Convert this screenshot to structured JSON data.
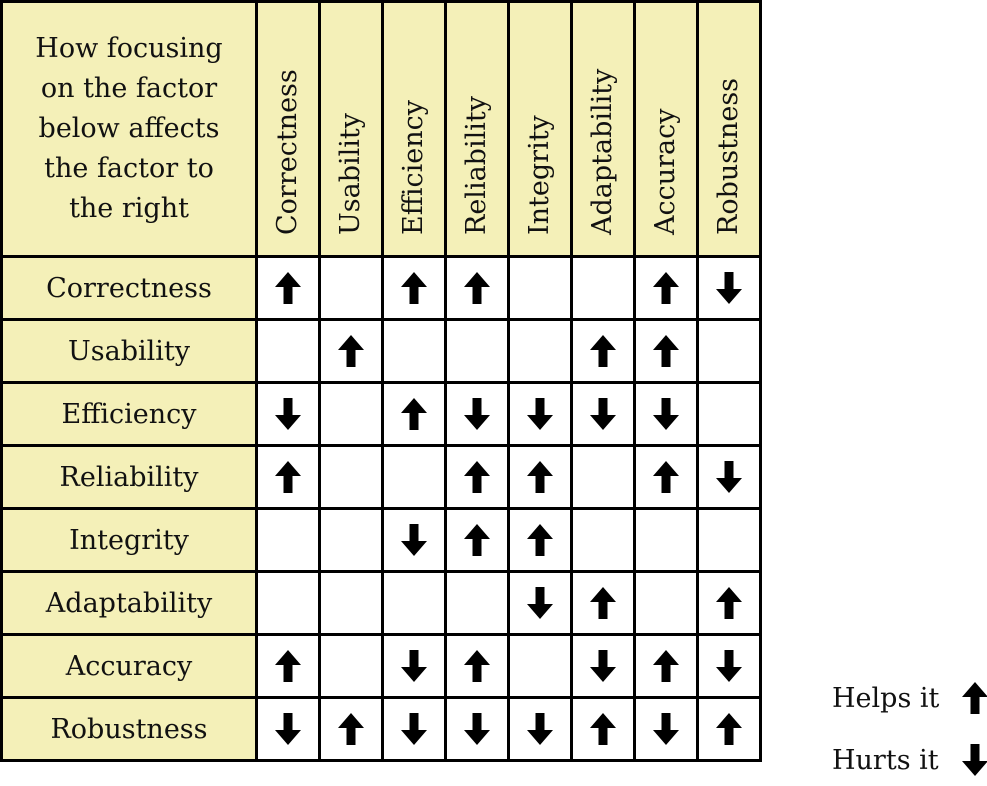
{
  "corner_text_lines": [
    "How focusing",
    "on the factor",
    "below affects",
    "the factor to",
    "the right"
  ],
  "factors": [
    "Correctness",
    "Usability",
    "Efficiency",
    "Reliability",
    "Integrity",
    "Adaptability",
    "Accuracy",
    "Robustness"
  ],
  "matrix": [
    [
      "up",
      "",
      "up",
      "up",
      "",
      "",
      "up",
      "down"
    ],
    [
      "",
      "up",
      "",
      "",
      "",
      "up",
      "up",
      ""
    ],
    [
      "down",
      "",
      "up",
      "down",
      "down",
      "down",
      "down",
      ""
    ],
    [
      "up",
      "",
      "",
      "up",
      "up",
      "",
      "up",
      "down"
    ],
    [
      "",
      "",
      "down",
      "up",
      "up",
      "",
      "",
      ""
    ],
    [
      "",
      "",
      "",
      "",
      "down",
      "up",
      "",
      "up"
    ],
    [
      "up",
      "",
      "down",
      "up",
      "",
      "down",
      "up",
      "down"
    ],
    [
      "down",
      "up",
      "down",
      "down",
      "down",
      "up",
      "down",
      "up"
    ]
  ],
  "legend": {
    "helps_label": "Helps it",
    "hurts_label": "Hurts it"
  },
  "colors": {
    "header_fill": "#f4f0b8",
    "grid_line": "#000000"
  }
}
